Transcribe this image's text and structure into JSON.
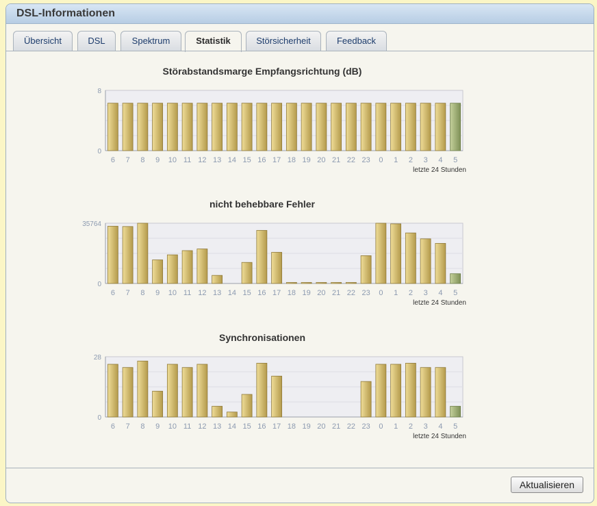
{
  "window": {
    "title": "DSL-Informationen"
  },
  "tabs": [
    {
      "label": "Übersicht",
      "active": false
    },
    {
      "label": "DSL",
      "active": false
    },
    {
      "label": "Spektrum",
      "active": false
    },
    {
      "label": "Statistik",
      "active": true
    },
    {
      "label": "Störsicherheit",
      "active": false
    },
    {
      "label": "Feedback",
      "active": false
    }
  ],
  "charts": {
    "subtitle": "letzte 24 Stunden",
    "hours": [
      "6",
      "7",
      "8",
      "9",
      "10",
      "11",
      "12",
      "13",
      "14",
      "15",
      "16",
      "17",
      "18",
      "19",
      "20",
      "21",
      "22",
      "23",
      "0",
      "1",
      "2",
      "3",
      "4",
      "5"
    ]
  },
  "chart_data": [
    {
      "type": "bar",
      "title": "Störabstandsmarge Empfangsrichtung (dB)",
      "xlabel": "letzte 24 Stunden",
      "categories": [
        "6",
        "7",
        "8",
        "9",
        "10",
        "11",
        "12",
        "13",
        "14",
        "15",
        "16",
        "17",
        "18",
        "19",
        "20",
        "21",
        "22",
        "23",
        "0",
        "1",
        "2",
        "3",
        "4",
        "5"
      ],
      "values": [
        6.3,
        6.3,
        6.3,
        6.3,
        6.3,
        6.3,
        6.3,
        6.3,
        6.3,
        6.3,
        6.3,
        6.3,
        6.3,
        6.3,
        6.3,
        6.3,
        6.3,
        6.3,
        6.3,
        6.3,
        6.3,
        6.3,
        6.3,
        6.3
      ],
      "ylim": [
        0,
        8
      ],
      "yticks": [
        "0",
        "8"
      ],
      "colors": {
        "bar": "#d6c071",
        "current": "#a6b57c",
        "grid": "#e4e4ea"
      }
    },
    {
      "type": "bar",
      "title": "nicht behebbare Fehler",
      "xlabel": "letzte 24 Stunden",
      "categories": [
        "6",
        "7",
        "8",
        "9",
        "10",
        "11",
        "12",
        "13",
        "14",
        "15",
        "16",
        "17",
        "18",
        "19",
        "20",
        "21",
        "22",
        "23",
        "0",
        "1",
        "2",
        "3",
        "4",
        "5"
      ],
      "values": [
        34000,
        33800,
        35764,
        14000,
        17000,
        19500,
        20500,
        4800,
        0,
        12500,
        31500,
        18500,
        400,
        400,
        400,
        400,
        400,
        16500,
        35764,
        35400,
        30000,
        26500,
        23800,
        5800
      ],
      "ylim": [
        0,
        35764
      ],
      "yticks": [
        "0",
        "35764"
      ],
      "colors": {
        "bar": "#d6c071",
        "current": "#a6b57c",
        "grid": "#e4e4ea"
      }
    },
    {
      "type": "bar",
      "title": "Synchronisationen",
      "xlabel": "letzte 24 Stunden",
      "categories": [
        "6",
        "7",
        "8",
        "9",
        "10",
        "11",
        "12",
        "13",
        "14",
        "15",
        "16",
        "17",
        "18",
        "19",
        "20",
        "21",
        "22",
        "23",
        "0",
        "1",
        "2",
        "3",
        "4",
        "5"
      ],
      "values": [
        24.5,
        23,
        26,
        12,
        24.5,
        23,
        24.5,
        5,
        2.3,
        10.5,
        25,
        19,
        0,
        0,
        0,
        0,
        0,
        16.5,
        24.5,
        24.5,
        25,
        23,
        23,
        5
      ],
      "ylim": [
        0,
        28
      ],
      "yticks": [
        "0",
        "28"
      ],
      "colors": {
        "bar": "#d6c071",
        "current": "#a6b57c",
        "grid": "#e4e4ea"
      }
    }
  ],
  "footer": {
    "refresh_label": "Aktualisieren"
  }
}
